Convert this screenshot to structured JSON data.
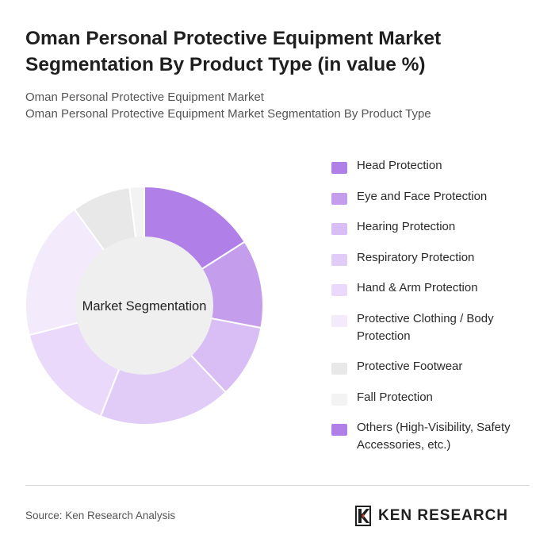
{
  "header": {
    "title": "Oman Personal Protective Equipment Market Segmentation By Product Type (in value %)",
    "subtitle_lines": [
      "Oman Personal Protective Equipment Market",
      "Oman Personal Protective Equipment Market Segmentation By Product Type"
    ]
  },
  "chart_data": {
    "type": "pie",
    "center_label": "Market Segmentation",
    "legend_position": "right",
    "slices": [
      {
        "label": "Head Protection",
        "value": 16,
        "color": "#b07fe8"
      },
      {
        "label": "Eye and Face Protection",
        "value": 12,
        "color": "#c49ded"
      },
      {
        "label": "Hearing Protection",
        "value": 10,
        "color": "#d9bdf5"
      },
      {
        "label": "Respiratory Protection",
        "value": 18,
        "color": "#e0ccf7"
      },
      {
        "label": "Hand & Arm Protection",
        "value": 15,
        "color": "#ead9fa"
      },
      {
        "label": "Protective Clothing / Body Protection",
        "value": 19,
        "color": "#f3ebfc"
      },
      {
        "label": "Protective Footwear",
        "value": 8,
        "color": "#e8e8e8"
      },
      {
        "label": "Fall Protection",
        "value": 2,
        "color": "#f3f3f3"
      },
      {
        "label": "Others (High-Visibility, Safety Accessories, etc.)",
        "value": 0,
        "color": "#b07fe8"
      }
    ]
  },
  "footer": {
    "source": "Source: Ken Research Analysis",
    "brand": "KEN RESEARCH"
  }
}
